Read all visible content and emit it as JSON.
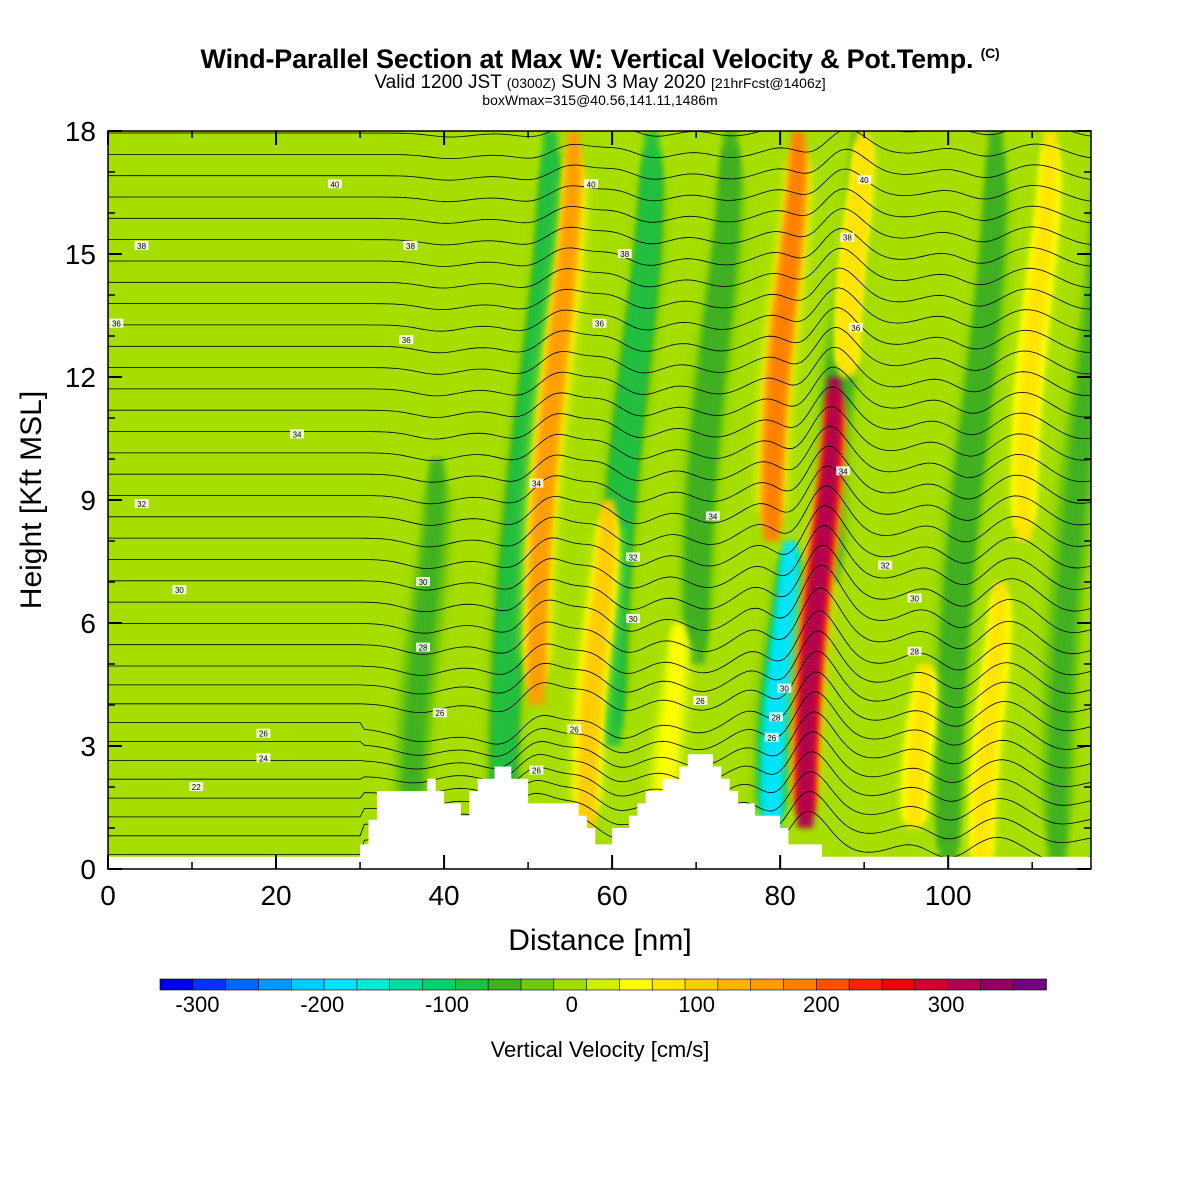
{
  "title": {
    "main": "Wind-Parallel Section at Max W: Vertical Velocity & Pot.Temp.",
    "copyright": "(C)",
    "valid_prefix": "Valid 1200 JST",
    "utc": "(0300Z)",
    "valid_date": "SUN 3 May 2020",
    "forecast": "[21hrFcst@1406z]",
    "boxwmax": "boxWmax=315@40.56,141.11,1486m"
  },
  "chart_data": {
    "type": "heatmap",
    "xlabel": "Distance [nm]",
    "ylabel": "Height [Kft MSL]",
    "xlim": [
      0,
      117
    ],
    "ylim": [
      0,
      18
    ],
    "x_ticks": [
      0,
      20,
      40,
      60,
      80,
      100
    ],
    "y_ticks": [
      0,
      3,
      6,
      9,
      12,
      15,
      18
    ],
    "colorbar": {
      "label": "Vertical Velocity [cm/s]",
      "min": -330,
      "max": 380,
      "ticks": [
        -300,
        -200,
        -100,
        0,
        100,
        200,
        300
      ],
      "colors": [
        "#0000f0",
        "#0033ff",
        "#0066ff",
        "#0099ff",
        "#00ccff",
        "#00e5ff",
        "#00ecd0",
        "#00dca0",
        "#00d070",
        "#20c040",
        "#40b020",
        "#70c810",
        "#a0dc00",
        "#d0f000",
        "#ffff00",
        "#ffe400",
        "#ffcc00",
        "#ffb400",
        "#ff9c00",
        "#ff7e00",
        "#ff5000",
        "#ff2000",
        "#f00000",
        "#d00030",
        "#b00050",
        "#900060",
        "#700080"
      ]
    },
    "updrafts_cm_s": [
      {
        "x": 51,
        "base": 4,
        "top": 18,
        "peak": 150
      },
      {
        "x": 57,
        "base": 1,
        "top": 9,
        "peak": 110
      },
      {
        "x": 66,
        "base": 0,
        "top": 6,
        "peak": 50
      },
      {
        "x": 79,
        "base": 8,
        "top": 18,
        "peak": 180
      },
      {
        "x": 83,
        "base": 1,
        "top": 12,
        "peak": 315
      },
      {
        "x": 88,
        "base": 12,
        "top": 18,
        "peak": 90
      },
      {
        "x": 96,
        "base": 1,
        "top": 5,
        "peak": 80
      },
      {
        "x": 104,
        "base": 0,
        "top": 7,
        "peak": 70
      },
      {
        "x": 109,
        "base": 8,
        "top": 18,
        "peak": 80
      }
    ],
    "downdrafts_cm_s": [
      {
        "x": 36,
        "base": 0,
        "top": 10,
        "peak": -50
      },
      {
        "x": 47,
        "base": 0,
        "top": 18,
        "peak": -90
      },
      {
        "x": 60,
        "base": 3,
        "top": 18,
        "peak": -90
      },
      {
        "x": 70,
        "base": 5,
        "top": 18,
        "peak": -60
      },
      {
        "x": 79,
        "base": 1,
        "top": 8,
        "peak": -190
      },
      {
        "x": 86,
        "base": 7,
        "top": 18,
        "peak": -60
      },
      {
        "x": 100,
        "base": 0,
        "top": 18,
        "peak": -60
      },
      {
        "x": 113,
        "base": 0,
        "top": 18,
        "peak": -50
      }
    ],
    "terrain_kft": {
      "x": [
        0,
        29,
        30,
        31,
        32,
        38,
        39,
        40,
        42,
        43,
        44,
        45,
        46,
        47,
        48,
        49,
        50,
        51,
        52,
        54,
        55,
        56,
        57,
        58,
        59,
        60,
        61,
        62,
        63,
        64,
        65,
        66,
        67,
        68,
        69,
        70,
        71,
        72,
        73,
        74,
        75,
        76,
        77,
        78,
        79,
        80,
        81,
        82,
        83,
        84,
        85,
        86,
        116,
        117
      ],
      "y": [
        0.3,
        0.3,
        0.6,
        1.2,
        1.9,
        2.2,
        1.9,
        1.6,
        1.3,
        1.9,
        2.2,
        2.2,
        2.5,
        2.5,
        2.2,
        2.2,
        1.6,
        1.6,
        1.6,
        1.6,
        1.6,
        1.3,
        1.0,
        0.6,
        0.6,
        1.0,
        1.0,
        1.3,
        1.6,
        1.9,
        1.9,
        2.2,
        2.2,
        2.5,
        2.8,
        2.8,
        2.8,
        2.5,
        2.2,
        1.9,
        1.6,
        1.6,
        1.3,
        1.3,
        1.3,
        1.0,
        0.6,
        0.6,
        0.6,
        0.6,
        0.3,
        0.3,
        0.3,
        0.0
      ]
    },
    "theta_labels": [
      {
        "x": 27,
        "y": 16.7,
        "text": "40"
      },
      {
        "x": 4,
        "y": 15.2,
        "text": "38"
      },
      {
        "x": 1,
        "y": 13.3,
        "text": "36"
      },
      {
        "x": 36,
        "y": 15.2,
        "text": "38"
      },
      {
        "x": 57.5,
        "y": 16.7,
        "text": "40"
      },
      {
        "x": 61.5,
        "y": 15.0,
        "text": "38"
      },
      {
        "x": 58.5,
        "y": 13.3,
        "text": "36"
      },
      {
        "x": 90,
        "y": 16.8,
        "text": "40"
      },
      {
        "x": 88,
        "y": 15.4,
        "text": "38"
      },
      {
        "x": 89,
        "y": 13.2,
        "text": "36"
      },
      {
        "x": 35.5,
        "y": 12.9,
        "text": "36"
      },
      {
        "x": 22.5,
        "y": 10.6,
        "text": "34"
      },
      {
        "x": 51,
        "y": 9.4,
        "text": "34"
      },
      {
        "x": 72,
        "y": 8.6,
        "text": "34"
      },
      {
        "x": 87.5,
        "y": 9.7,
        "text": "34"
      },
      {
        "x": 4,
        "y": 8.9,
        "text": "32"
      },
      {
        "x": 62.5,
        "y": 7.6,
        "text": "32"
      },
      {
        "x": 92.5,
        "y": 7.4,
        "text": "32"
      },
      {
        "x": 37.5,
        "y": 7.0,
        "text": "30"
      },
      {
        "x": 8.5,
        "y": 6.8,
        "text": "30"
      },
      {
        "x": 62.5,
        "y": 6.1,
        "text": "30"
      },
      {
        "x": 96,
        "y": 6.6,
        "text": "30"
      },
      {
        "x": 37.5,
        "y": 5.4,
        "text": "28"
      },
      {
        "x": 80.5,
        "y": 4.4,
        "text": "30"
      },
      {
        "x": 96,
        "y": 5.3,
        "text": "28"
      },
      {
        "x": 79.5,
        "y": 3.7,
        "text": "28"
      },
      {
        "x": 39.5,
        "y": 3.8,
        "text": "26"
      },
      {
        "x": 55.5,
        "y": 3.4,
        "text": "26"
      },
      {
        "x": 70.5,
        "y": 4.1,
        "text": "26"
      },
      {
        "x": 79,
        "y": 3.2,
        "text": "26"
      },
      {
        "x": 18.5,
        "y": 3.3,
        "text": "26"
      },
      {
        "x": 18.5,
        "y": 2.7,
        "text": "24"
      },
      {
        "x": 51,
        "y": 2.4,
        "text": "26"
      },
      {
        "x": 10.5,
        "y": 2.0,
        "text": "22"
      }
    ]
  }
}
